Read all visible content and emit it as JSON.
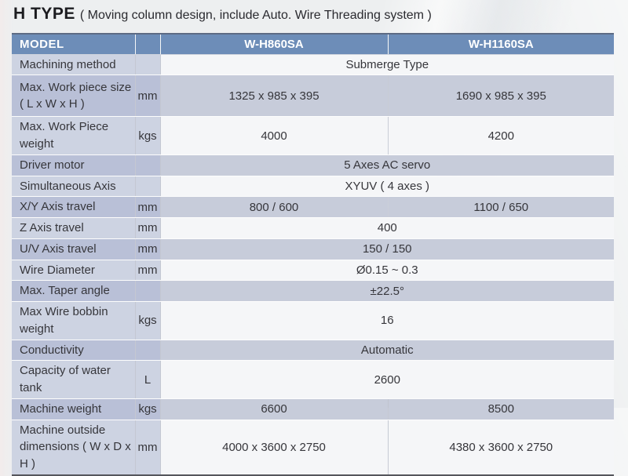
{
  "title": {
    "main": "H TYPE",
    "subtitle": "( Moving column design, include Auto. Wire Threading system )"
  },
  "table": {
    "header": {
      "model_label": "MODEL",
      "unit_label": "",
      "col1": "W-H860SA",
      "col2": "W-H1160SA"
    },
    "rows": [
      {
        "label": "Machining method",
        "unit": "",
        "span": "Submerge Type"
      },
      {
        "label": "Max. Work piece size ( L x W x H )",
        "unit": "mm",
        "v1": "1325 x 985 x 395",
        "v2": "1690 x 985 x 395"
      },
      {
        "label": "Max. Work Piece weight",
        "unit": "kgs",
        "v1": "4000",
        "v2": "4200"
      },
      {
        "label": "Driver motor",
        "unit": "",
        "span": "5 Axes AC servo"
      },
      {
        "label": "Simultaneous Axis",
        "unit": "",
        "span": "XYUV ( 4 axes )"
      },
      {
        "label": "X/Y Axis travel",
        "unit": "mm",
        "v1": "800 / 600",
        "v2": "1100 / 650"
      },
      {
        "label": "Z Axis travel",
        "unit": "mm",
        "span": "400"
      },
      {
        "label": "U/V Axis travel",
        "unit": "mm",
        "span": "150 / 150"
      },
      {
        "label": "Wire Diameter",
        "unit": "mm",
        "span": "Ø0.15 ~ 0.3"
      },
      {
        "label": "Max. Taper angle",
        "unit": "",
        "span": "±22.5°"
      },
      {
        "label": "Max Wire bobbin weight",
        "unit": "kgs",
        "span": "16"
      },
      {
        "label": "Conductivity",
        "unit": "",
        "span": "Automatic"
      },
      {
        "label": "Capacity of water tank",
        "unit": "L",
        "span": "2600"
      },
      {
        "label": "Machine weight",
        "unit": "kgs",
        "v1": "6600",
        "v2": "8500"
      },
      {
        "label": "Machine outside dimensions ( W x D x H )",
        "unit": "mm",
        "v1": "4000 x 3600 x 2750",
        "v2": "4380 x 3600 x 2750"
      }
    ],
    "colors": {
      "header_bg": "#6d8db8",
      "header_text": "#ffffff",
      "row_light_label_bg": "#cdd3e2",
      "row_light_value_bg": "#f5f6f8",
      "row_dark_label_bg": "#b9c0d7",
      "row_dark_value_bg": "#c7ccda",
      "body_text": "#36363b",
      "table_bottom_border": "#55565c"
    }
  }
}
